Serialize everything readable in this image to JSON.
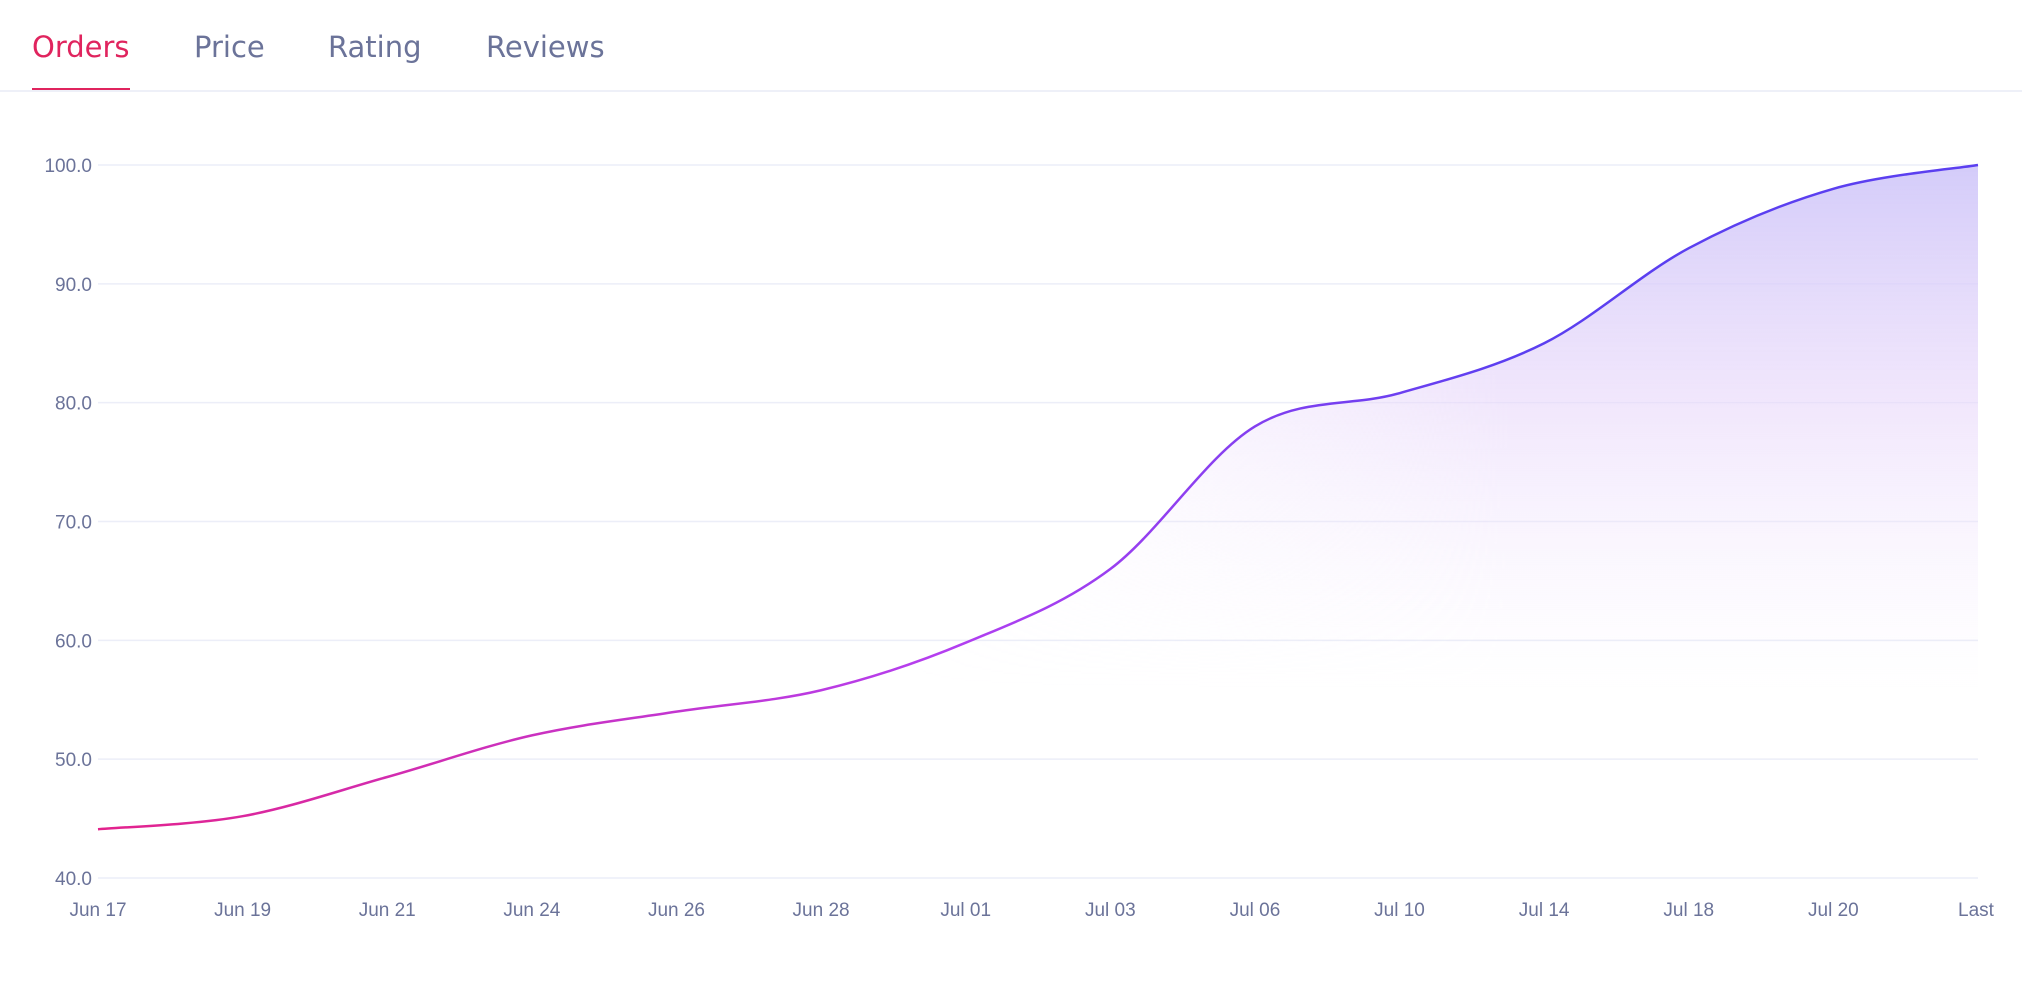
{
  "tabs": [
    {
      "label": "Orders",
      "active": true
    },
    {
      "label": "Price",
      "active": false
    },
    {
      "label": "Rating",
      "active": false
    },
    {
      "label": "Reviews",
      "active": false
    }
  ],
  "colors": {
    "active_tab": "#e0245e",
    "line_start": "#e3228c",
    "line_end": "#5b3ff0",
    "area": "#c9bff8",
    "axis_text": "#6b7399",
    "grid": "#eceef8"
  },
  "chart_data": {
    "type": "area",
    "categories": [
      "Jun 17",
      "Jun 19",
      "Jun 21",
      "Jun 24",
      "Jun 26",
      "Jun 28",
      "Jul 01",
      "Jul 03",
      "Jul 06",
      "Jul 10",
      "Jul 14",
      "Jul 18",
      "Jul 20",
      "Last"
    ],
    "values": [
      44.1,
      45.2,
      48.5,
      52.0,
      54.0,
      55.8,
      59.8,
      66.0,
      78.0,
      80.8,
      85.0,
      93.0,
      98.0,
      100.0
    ],
    "yticks": [
      "40.0",
      "50.0",
      "60.0",
      "70.0",
      "80.0",
      "90.0",
      "100.0"
    ],
    "ylim": [
      40,
      100
    ],
    "grid": true,
    "xlabel": "",
    "ylabel": "",
    "title": ""
  }
}
